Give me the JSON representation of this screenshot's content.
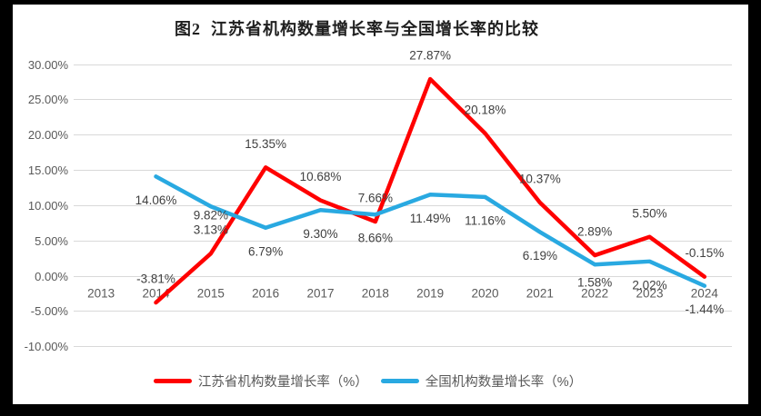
{
  "window": {
    "frame_color": "#000000",
    "canvas_color": "#FFFFFF"
  },
  "chart_data": {
    "type": "line",
    "title": "图2  江苏省机构数量增长率与全国增长率的比较",
    "categories": [
      "2013",
      "2014",
      "2015",
      "2016",
      "2017",
      "2018",
      "2019",
      "2020",
      "2021",
      "2022",
      "2023",
      "2024"
    ],
    "series": [
      {
        "name": "江苏省机构数量增长率（%）",
        "color": "#FF0000",
        "values": [
          null,
          -3.81,
          3.13,
          15.35,
          10.68,
          7.66,
          27.87,
          20.18,
          10.37,
          2.89,
          5.5,
          -0.15
        ],
        "labels": [
          null,
          "-3.81%",
          "3.13%",
          "15.35%",
          "10.68%",
          "7.66%",
          "27.87%",
          "20.18%",
          "10.37%",
          "2.89%",
          "5.50%",
          "-0.15%"
        ]
      },
      {
        "name": "全国机构数量增长率（%）",
        "color": "#29A9E1",
        "values": [
          null,
          14.06,
          9.82,
          6.79,
          9.3,
          8.66,
          11.49,
          11.16,
          6.19,
          1.58,
          2.02,
          -1.44
        ],
        "labels": [
          null,
          "14.06%",
          "9.82%",
          "6.79%",
          "9.30%",
          "8.66%",
          "11.49%",
          "11.16%",
          "6.19%",
          "1.58%",
          "2.02%",
          "-1.44%"
        ]
      }
    ],
    "y_axis": {
      "tick_labels": [
        "30.00%",
        "25.00%",
        "20.00%",
        "15.00%",
        "10.00%",
        "5.00%",
        "0.00%",
        "-5.00%",
        "-10.00%"
      ],
      "tick_values": [
        30,
        25,
        20,
        15,
        10,
        5,
        0,
        -5,
        -10
      ],
      "min": -10,
      "max": 30
    },
    "grid": true,
    "legend_position": "bottom",
    "colors": {
      "gridline": "#D9D9D9",
      "axis_text": "#595959",
      "data_label_text": "#404040",
      "title_text": "#1F1F1F"
    }
  }
}
